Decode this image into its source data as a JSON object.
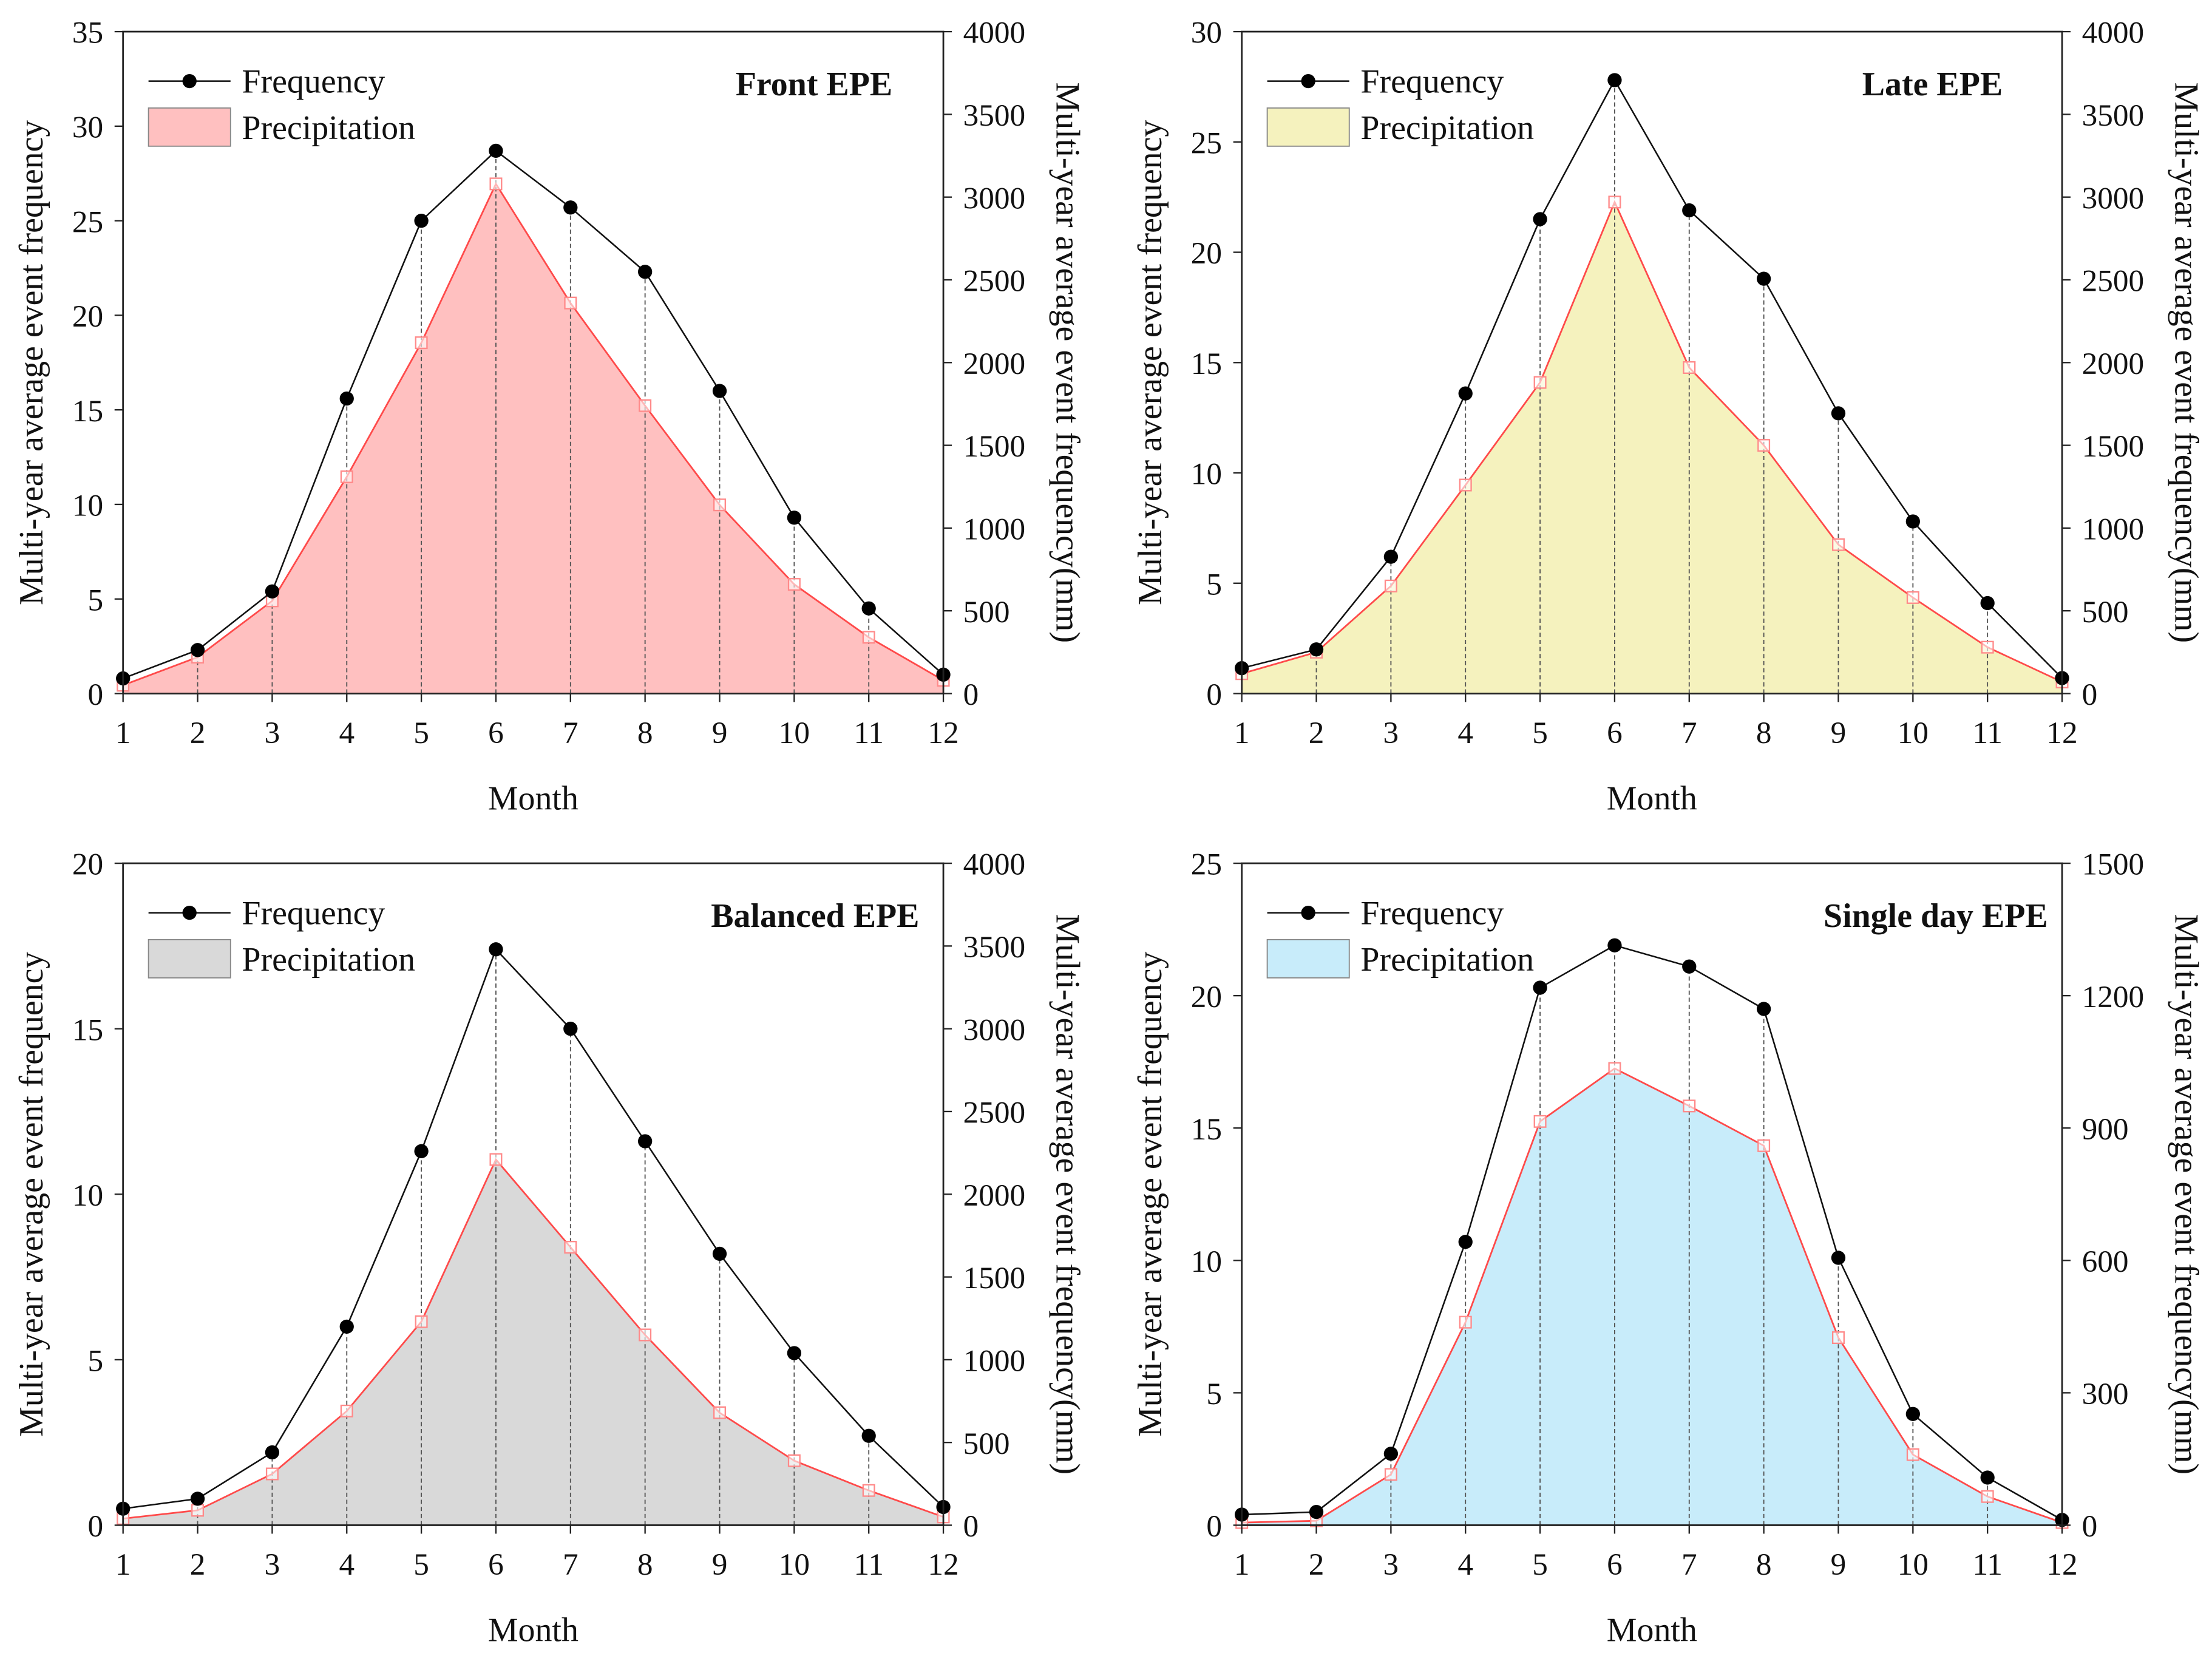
{
  "chart_data": [
    {
      "type": "line+area",
      "title": "Front EPE",
      "xlabel": "Month",
      "ylabel": "Multi-year average event frequency",
      "y2label": "Multi-year average event frequency(mm)",
      "x": [
        1,
        2,
        3,
        4,
        5,
        6,
        7,
        8,
        9,
        10,
        11,
        12
      ],
      "ylim": [
        0,
        35
      ],
      "yticks": [
        0,
        5,
        10,
        15,
        20,
        25,
        30,
        35
      ],
      "y2lim": [
        0,
        4000
      ],
      "y2ticks": [
        0,
        500,
        1000,
        1500,
        2000,
        2500,
        3000,
        3500,
        4000
      ],
      "legend": [
        "Frequency",
        "Precipitation"
      ],
      "legend_position": "top-left",
      "fill_color": "#ffc0c0",
      "series": [
        {
          "name": "Frequency",
          "axis": "left",
          "values": [
            0.8,
            2.3,
            5.4,
            15.6,
            25.0,
            28.7,
            25.7,
            22.3,
            16.0,
            9.3,
            4.5,
            1.0
          ]
        },
        {
          "name": "Precipitation",
          "axis": "right",
          "values": [
            50,
            220,
            560,
            1310,
            2120,
            3080,
            2360,
            1740,
            1140,
            660,
            340,
            80
          ]
        }
      ]
    },
    {
      "type": "line+area",
      "title": "Late EPE",
      "xlabel": "Month",
      "ylabel": "Multi-year average event frequency",
      "y2label": "Multi-year average event frequency(mm)",
      "x": [
        1,
        2,
        3,
        4,
        5,
        6,
        7,
        8,
        9,
        10,
        11,
        12
      ],
      "ylim": [
        0,
        30
      ],
      "yticks": [
        0,
        5,
        10,
        15,
        20,
        25,
        30
      ],
      "y2lim": [
        0,
        4000
      ],
      "y2ticks": [
        0,
        500,
        1000,
        1500,
        2000,
        2500,
        3000,
        3500,
        4000
      ],
      "legend": [
        "Frequency",
        "Precipitation"
      ],
      "legend_position": "top-left",
      "fill_color": "#f5f2be",
      "series": [
        {
          "name": "Frequency",
          "axis": "left",
          "values": [
            1.15,
            2.0,
            6.2,
            13.6,
            21.5,
            27.8,
            21.9,
            18.8,
            12.7,
            7.8,
            4.1,
            0.7
          ]
        },
        {
          "name": "Precipitation",
          "axis": "right",
          "values": [
            120,
            250,
            650,
            1260,
            1880,
            2970,
            1970,
            1500,
            900,
            580,
            280,
            70
          ]
        }
      ]
    },
    {
      "type": "line+area",
      "title": "Balanced EPE",
      "xlabel": "Month",
      "ylabel": "Multi-year average event frequency",
      "y2label": "Multi-year average event frequency(mm)",
      "x": [
        1,
        2,
        3,
        4,
        5,
        6,
        7,
        8,
        9,
        10,
        11,
        12
      ],
      "ylim": [
        0,
        20
      ],
      "yticks": [
        0,
        5,
        10,
        15,
        20
      ],
      "y2lim": [
        0,
        4000
      ],
      "y2ticks": [
        0,
        500,
        1000,
        1500,
        2000,
        2500,
        3000,
        3500,
        4000
      ],
      "legend": [
        "Frequency",
        "Precipitation"
      ],
      "legend_position": "top-left",
      "fill_color": "#d9d9d9",
      "series": [
        {
          "name": "Frequency",
          "axis": "left",
          "values": [
            0.5,
            0.8,
            2.2,
            6.0,
            11.3,
            17.4,
            15.0,
            11.6,
            8.2,
            5.2,
            2.7,
            0.55
          ]
        },
        {
          "name": "Precipitation",
          "axis": "right",
          "values": [
            40,
            90,
            310,
            690,
            1230,
            2210,
            1680,
            1150,
            680,
            390,
            210,
            50
          ]
        }
      ]
    },
    {
      "type": "line+area",
      "title": "Single day EPE",
      "xlabel": "Month",
      "ylabel": "Multi-year average event frequency",
      "y2label": "Multi-year average event frequency(mm)",
      "x": [
        1,
        2,
        3,
        4,
        5,
        6,
        7,
        8,
        9,
        10,
        11,
        12
      ],
      "ylim": [
        0,
        25
      ],
      "yticks": [
        0,
        5,
        10,
        15,
        20,
        25
      ],
      "y2lim": [
        0,
        1500
      ],
      "y2ticks": [
        0,
        300,
        600,
        900,
        1200,
        1500
      ],
      "legend": [
        "Frequency",
        "Precipitation"
      ],
      "legend_position": "top-left",
      "fill_color": "#c8ecfa",
      "series": [
        {
          "name": "Frequency",
          "axis": "left",
          "values": [
            0.4,
            0.5,
            2.7,
            10.7,
            20.3,
            21.9,
            21.1,
            19.5,
            10.1,
            4.2,
            1.8,
            0.2
          ]
        },
        {
          "name": "Precipitation",
          "axis": "right",
          "values": [
            6,
            10,
            115,
            460,
            915,
            1035,
            950,
            860,
            425,
            160,
            65,
            6
          ]
        }
      ]
    }
  ]
}
